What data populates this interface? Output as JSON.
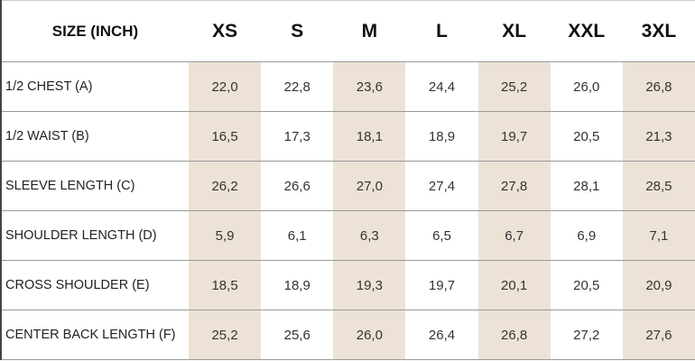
{
  "table": {
    "header": [
      "SIZE (INCH)",
      "XS",
      "S",
      "M",
      "L",
      "XL",
      "XXL",
      "3XL"
    ],
    "rows": [
      [
        "1/2 CHEST (A)",
        "22,0",
        "22,8",
        "23,6",
        "24,4",
        "25,2",
        "26,0",
        "26,8"
      ],
      [
        "1/2 WAIST (B)",
        "16,5",
        "17,3",
        "18,1",
        "18,9",
        "19,7",
        "20,5",
        "21,3"
      ],
      [
        "SLEEVE LENGTH (C)",
        "26,2",
        "26,6",
        "27,0",
        "27,4",
        "27,8",
        "28,1",
        "28,5"
      ],
      [
        "SHOULDER LENGTH (D)",
        "5,9",
        "6,1",
        "6,3",
        "6,5",
        "6,7",
        "6,9",
        "7,1"
      ],
      [
        "CROSS SHOULDER (E)",
        "18,5",
        "18,9",
        "19,3",
        "19,7",
        "20,1",
        "20,5",
        "20,9"
      ],
      [
        "CENTER BACK LENGTH (F)",
        "25,2",
        "25,6",
        "26,0",
        "26,4",
        "26,8",
        "27,2",
        "27,6"
      ]
    ]
  }
}
